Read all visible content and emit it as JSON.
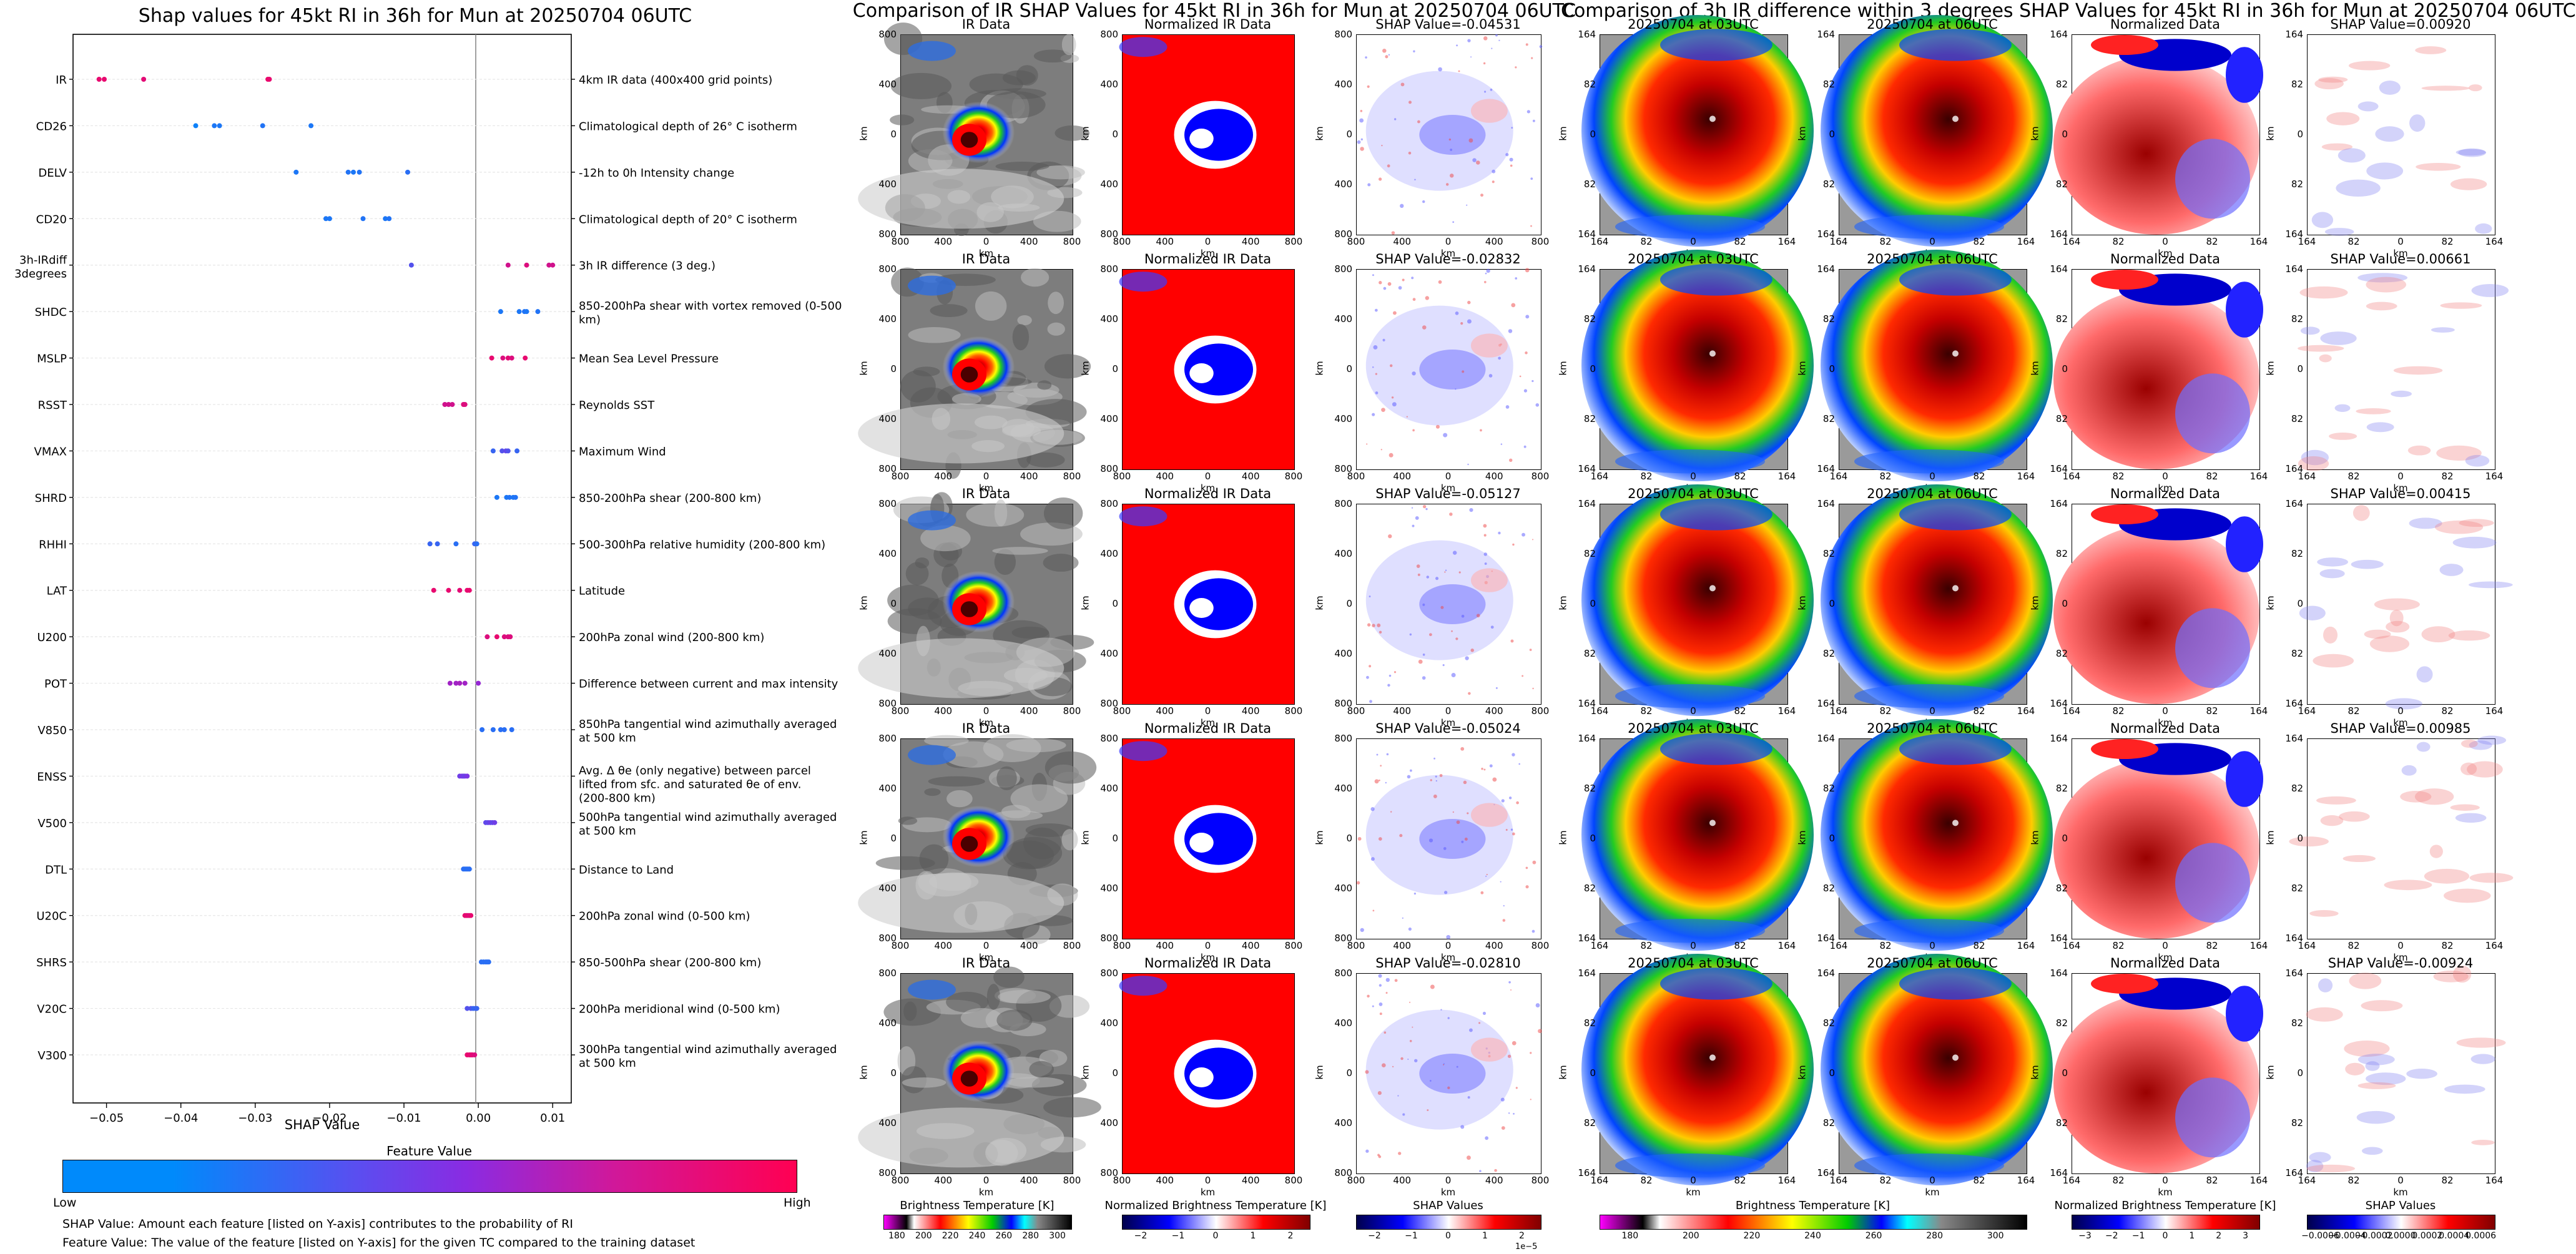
{
  "left_panel": {
    "title": "Shap values for 45kt RI in 36h for Mun at 20250704 06UTC",
    "xlabel": "SHAP Value",
    "colorbar_title": "Feature Value",
    "low_label": "Low",
    "high_label": "High",
    "note1": "SHAP Value: Amount each feature [listed on Y-axis] contributes to the probability of RI",
    "note2": "Feature Value: The value of the feature [listed on Y-axis] for the given TC compared to the training dataset"
  },
  "center_title": "Comparison of IR SHAP Values for 45kt RI in 36h for Mun at 20250704 06UTC",
  "right_title": "Comparison of 3h IR difference within 3 degrees SHAP Values for 45kt RI in 36h for Mun at 20250704 06UTC",
  "grid": {
    "ir_col_titles": [
      "IR Data",
      "Normalized IR Data"
    ],
    "ir_shap_titles": [
      "SHAP Value=-0.04531",
      "SHAP Value=-0.02832",
      "SHAP Value=-0.05127",
      "SHAP Value=-0.05024",
      "SHAP Value=-0.02810"
    ],
    "diff_col_titles": [
      "20250704 at 03UTC",
      "20250704 at 06UTC",
      "Normalized Data"
    ],
    "diff_shap_titles": [
      "SHAP Value=0.00920",
      "SHAP Value=0.00661",
      "SHAP Value=0.00415",
      "SHAP Value=0.00985",
      "SHAP Value=-0.00924"
    ],
    "km_label": "km",
    "ir_ticks": [
      "800",
      "400",
      "0",
      "400",
      "800"
    ],
    "diff_ticks": [
      "164",
      "82",
      "0",
      "82",
      "164"
    ]
  },
  "colorbars": [
    {
      "label": "Brightness Temperature [K]",
      "ticks": [
        "180",
        "200",
        "220",
        "240",
        "260",
        "280",
        "300"
      ]
    },
    {
      "label": "Normalized Brightness Temperature [K]",
      "ticks": [
        "−2",
        "−1",
        "0",
        "1",
        "2"
      ]
    },
    {
      "label": "SHAP Values",
      "ticks": [
        "−2",
        "−1",
        "0",
        "1",
        "2"
      ],
      "exponent": "1e−5"
    },
    {
      "label": "Brightness Temperature [K]",
      "ticks": [
        "180",
        "200",
        "220",
        "240",
        "260",
        "280",
        "300"
      ]
    },
    {
      "label": "Normalized Brightness Temperature [K]",
      "ticks": [
        "−3",
        "−2",
        "−1",
        "0",
        "1",
        "2",
        "3"
      ]
    },
    {
      "label": "SHAP Values",
      "ticks": [
        "−0.0006",
        "−0.0004",
        "−0.0002",
        "0.0000",
        "0.0002",
        "0.0004",
        "0.0006"
      ]
    }
  ],
  "chart_data": {
    "type": "scatter",
    "title": "Shap values for 45kt RI in 36h for Mun at 20250704 06UTC",
    "xlabel": "SHAP Value",
    "xlim": [
      -0.0545,
      0.0125
    ],
    "x_ticks": [
      "−0.05",
      "−0.04",
      "−0.03",
      "−0.02",
      "−0.01",
      "0.00",
      "0.01"
    ],
    "x_tick_values": [
      -0.05,
      -0.04,
      -0.03,
      -0.02,
      -0.01,
      0.0,
      0.01
    ],
    "features": [
      {
        "name": "IR",
        "description": "4km IR data (400x400 grid points)",
        "points": [
          [
            -0.051,
            0.9
          ],
          [
            -0.0503,
            0.9
          ],
          [
            -0.045,
            0.88
          ],
          [
            -0.0283,
            0.92
          ],
          [
            -0.0281,
            0.9
          ]
        ]
      },
      {
        "name": "CD26",
        "description": "Climatological depth of 26° C isotherm",
        "points": [
          [
            -0.038,
            0.05
          ],
          [
            -0.0355,
            0.1
          ],
          [
            -0.0348,
            0.1
          ],
          [
            -0.029,
            0.12
          ],
          [
            -0.0225,
            0.1
          ]
        ]
      },
      {
        "name": "DELV",
        "description": "-12h to 0h Intensity change",
        "points": [
          [
            -0.0245,
            0.1
          ],
          [
            -0.0175,
            0.12
          ],
          [
            -0.0168,
            0.1
          ],
          [
            -0.016,
            0.12
          ],
          [
            -0.0095,
            0.15
          ]
        ]
      },
      {
        "name": "CD20",
        "description": "Climatological depth of 20° C isotherm",
        "points": [
          [
            -0.0205,
            0.1
          ],
          [
            -0.02,
            0.1
          ],
          [
            -0.0155,
            0.12
          ],
          [
            -0.0125,
            0.1
          ],
          [
            -0.012,
            0.12
          ]
        ]
      },
      {
        "name": "3h-IRdiff 3degrees",
        "description": "3h IR difference (3 deg.)",
        "points": [
          [
            -0.009,
            0.3
          ],
          [
            0.004,
            0.8
          ],
          [
            0.0065,
            0.85
          ],
          [
            0.0095,
            0.8
          ],
          [
            0.01,
            0.8
          ]
        ]
      },
      {
        "name": "SHDC",
        "description": "850-200hPa shear with vortex removed (0-500 km)",
        "points": [
          [
            0.003,
            0.1
          ],
          [
            0.0055,
            0.1
          ],
          [
            0.0062,
            0.12
          ],
          [
            0.0065,
            0.1
          ],
          [
            0.008,
            0.12
          ]
        ]
      },
      {
        "name": "MSLP",
        "description": "Mean Sea Level Pressure",
        "points": [
          [
            0.0018,
            0.9
          ],
          [
            0.0033,
            0.85
          ],
          [
            0.004,
            0.88
          ],
          [
            0.0045,
            0.85
          ],
          [
            0.0063,
            0.9
          ]
        ]
      },
      {
        "name": "RSST",
        "description": "Reynolds SST",
        "points": [
          [
            -0.0045,
            0.8
          ],
          [
            -0.004,
            0.8
          ],
          [
            -0.0035,
            0.8
          ],
          [
            -0.002,
            0.85
          ],
          [
            -0.0018,
            0.85
          ]
        ]
      },
      {
        "name": "VMAX",
        "description": "Maximum Wind",
        "points": [
          [
            0.002,
            0.2
          ],
          [
            0.0032,
            0.3
          ],
          [
            0.0037,
            0.35
          ],
          [
            0.004,
            0.3
          ],
          [
            0.0052,
            0.2
          ]
        ]
      },
      {
        "name": "SHRD",
        "description": "850-200hPa shear (200-800 km)",
        "points": [
          [
            0.0025,
            0.1
          ],
          [
            0.0038,
            0.1
          ],
          [
            0.0042,
            0.12
          ],
          [
            0.0047,
            0.1
          ],
          [
            0.005,
            0.12
          ]
        ]
      },
      {
        "name": "RHHI",
        "description": "500-300hPa relative humidity (200-800 km)",
        "points": [
          [
            -0.0065,
            0.2
          ],
          [
            -0.0055,
            0.2
          ],
          [
            -0.003,
            0.15
          ],
          [
            -0.0005,
            0.2
          ],
          [
            -0.0002,
            0.15
          ]
        ]
      },
      {
        "name": "LAT",
        "description": "Latitude",
        "points": [
          [
            -0.006,
            0.9
          ],
          [
            -0.004,
            0.9
          ],
          [
            -0.0025,
            0.88
          ],
          [
            -0.0015,
            0.9
          ],
          [
            -0.0012,
            0.9
          ]
        ]
      },
      {
        "name": "U200",
        "description": "200hPa zonal wind (200-800 km)",
        "points": [
          [
            0.0012,
            0.85
          ],
          [
            0.0025,
            0.9
          ],
          [
            0.0035,
            0.85
          ],
          [
            0.004,
            0.85
          ],
          [
            0.0043,
            0.85
          ]
        ]
      },
      {
        "name": "POT",
        "description": "Difference between current and max intensity",
        "points": [
          [
            -0.0038,
            0.6
          ],
          [
            -0.003,
            0.6
          ],
          [
            -0.0025,
            0.62
          ],
          [
            -0.0018,
            0.6
          ],
          [
            0.0,
            0.55
          ]
        ]
      },
      {
        "name": "V850",
        "description": "850hPa tangential wind azimuthally averaged at 500 km",
        "points": [
          [
            0.0005,
            0.15
          ],
          [
            0.002,
            0.15
          ],
          [
            0.003,
            0.15
          ],
          [
            0.0035,
            0.15
          ],
          [
            0.0045,
            0.15
          ]
        ]
      },
      {
        "name": "ENSS",
        "description": "Avg. Δ θe (only negative) between parcel lifted from sfc. and saturated θe of env. (200-800 km)",
        "points": [
          [
            -0.0025,
            0.4
          ],
          [
            -0.0022,
            0.45
          ],
          [
            -0.002,
            0.4
          ],
          [
            -0.0018,
            0.4
          ],
          [
            -0.0015,
            0.45
          ]
        ]
      },
      {
        "name": "V500",
        "description": "500hPa tangential wind azimuthally averaged at 500 km",
        "points": [
          [
            0.001,
            0.35
          ],
          [
            0.0013,
            0.35
          ],
          [
            0.0016,
            0.4
          ],
          [
            0.0019,
            0.35
          ],
          [
            0.0022,
            0.4
          ]
        ]
      },
      {
        "name": "DTL",
        "description": "Distance to Land",
        "points": [
          [
            -0.002,
            0.15
          ],
          [
            -0.0018,
            0.15
          ],
          [
            -0.0016,
            0.15
          ],
          [
            -0.0014,
            0.15
          ],
          [
            -0.0012,
            0.15
          ]
        ]
      },
      {
        "name": "U20C",
        "description": "200hPa zonal wind (0-500 km)",
        "points": [
          [
            -0.0018,
            0.9
          ],
          [
            -0.0016,
            0.88
          ],
          [
            -0.0014,
            0.9
          ],
          [
            -0.0012,
            0.85
          ],
          [
            -0.001,
            0.9
          ]
        ]
      },
      {
        "name": "SHRS",
        "description": "850-500hPa shear (200-800 km)",
        "points": [
          [
            0.0004,
            0.15
          ],
          [
            0.0007,
            0.15
          ],
          [
            0.001,
            0.15
          ],
          [
            0.0012,
            0.15
          ],
          [
            0.0014,
            0.15
          ]
        ]
      },
      {
        "name": "V20C",
        "description": "200hPa meridional wind (0-500 km)",
        "points": [
          [
            -0.0015,
            0.3
          ],
          [
            -0.001,
            0.3
          ],
          [
            -0.0007,
            0.2
          ],
          [
            -0.0004,
            0.2
          ],
          [
            -0.0002,
            0.2
          ]
        ]
      },
      {
        "name": "V300",
        "description": "300hPa tangential wind azimuthally averaged at 500 km",
        "points": [
          [
            -0.0015,
            0.9
          ],
          [
            -0.0012,
            0.9
          ],
          [
            -0.001,
            0.88
          ],
          [
            -0.0008,
            0.88
          ],
          [
            -0.0005,
            0.85
          ]
        ]
      }
    ],
    "grid": false,
    "colorbar": {
      "label": "Feature Value",
      "low": "Low",
      "high": "High",
      "colors": [
        "#008afb",
        "#8a2be2",
        "#ff0052"
      ]
    }
  }
}
